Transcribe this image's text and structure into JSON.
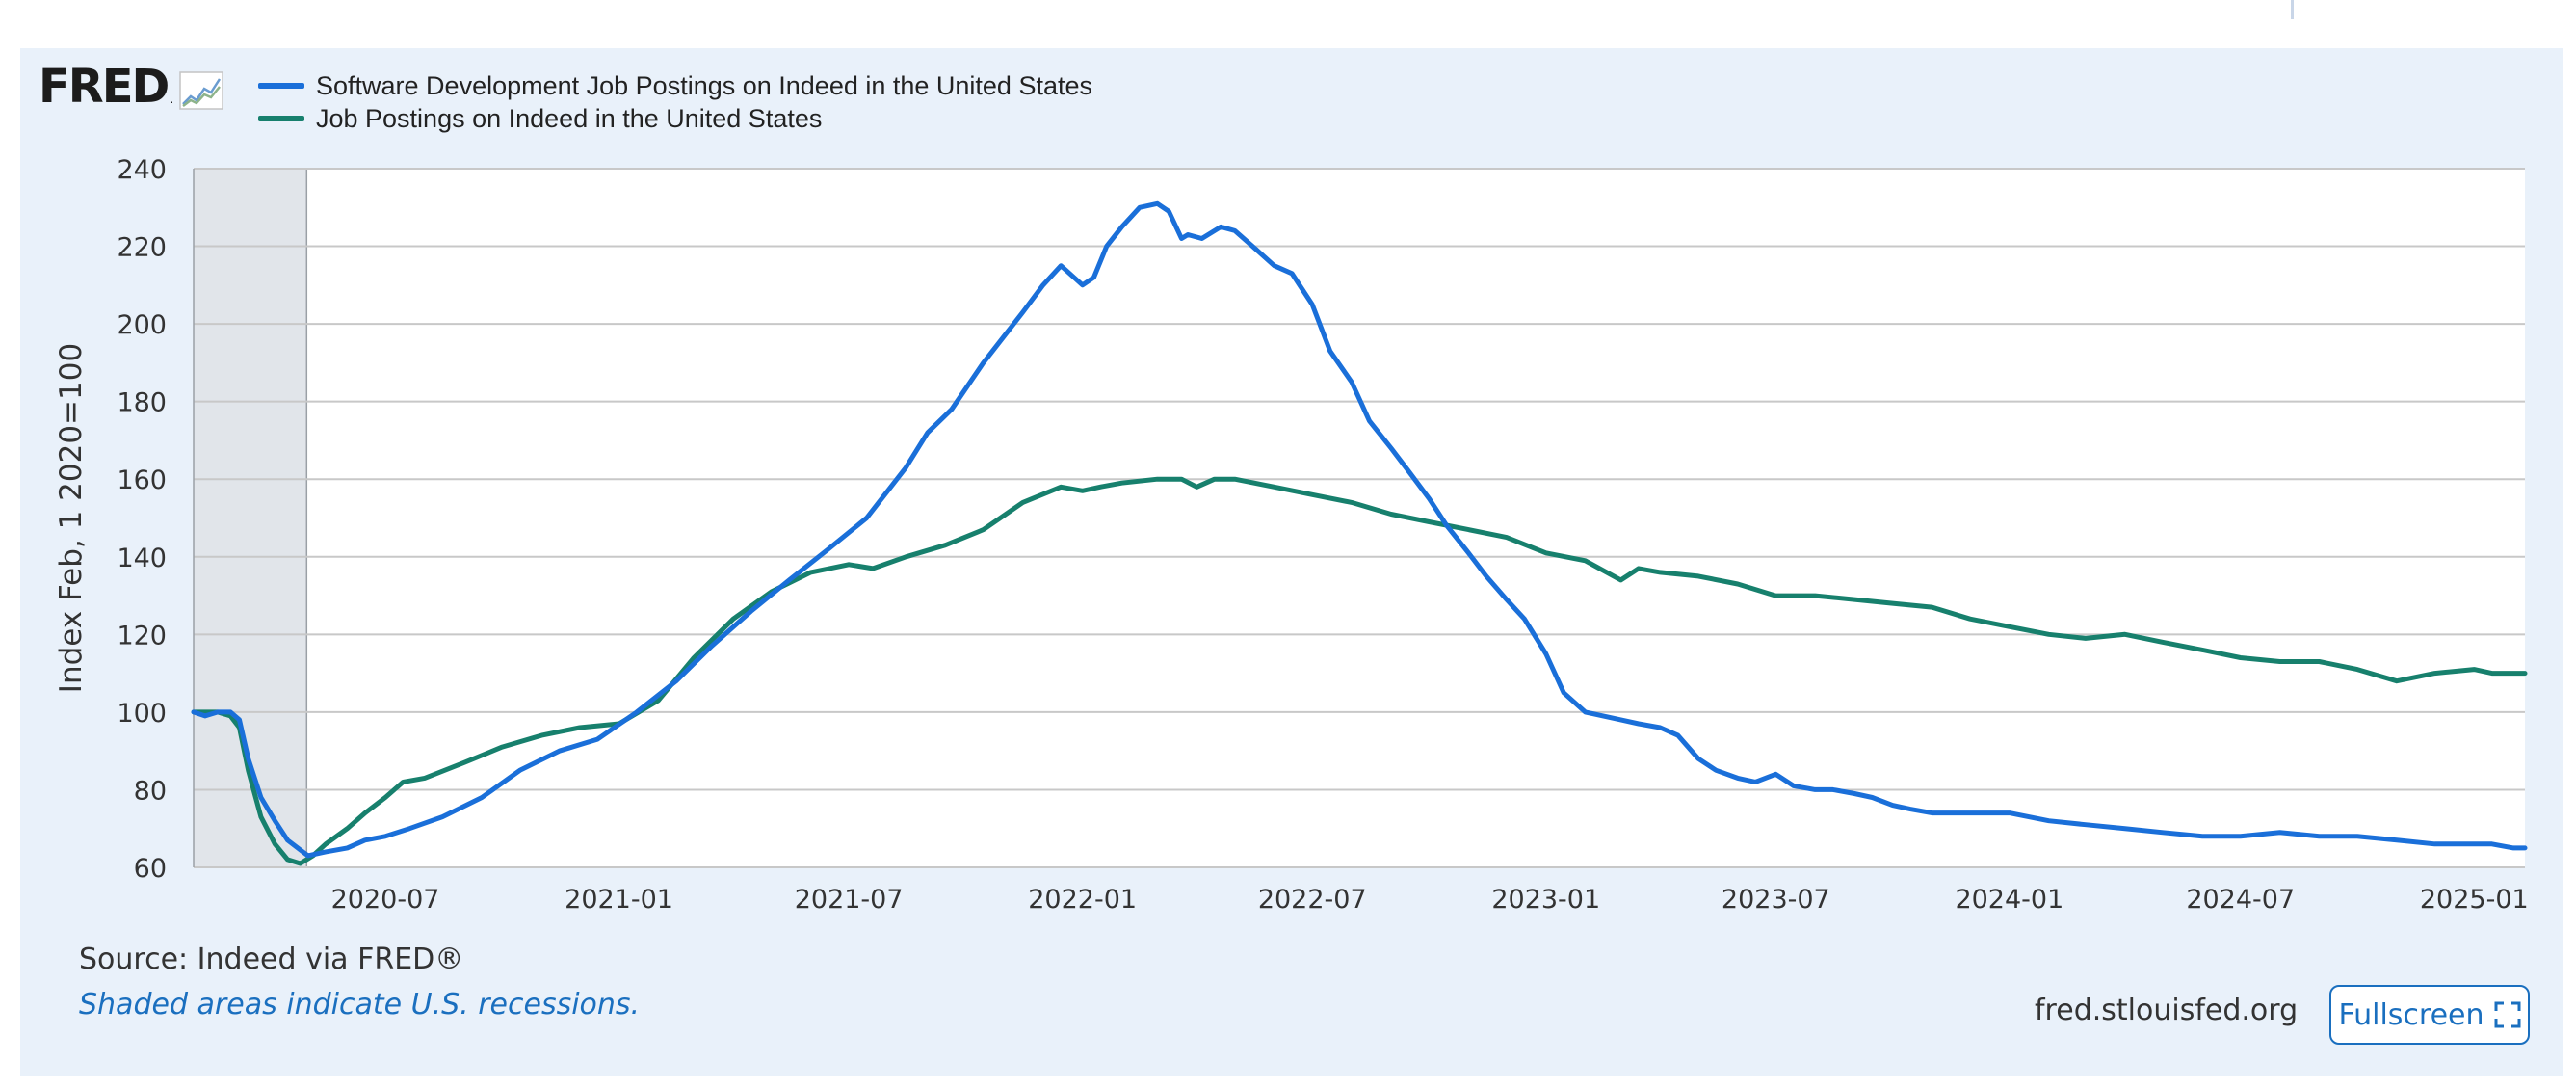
{
  "logo": {
    "text": "FRED",
    "dot": "."
  },
  "source": "Source: Indeed via FRED®",
  "recession_note": "Shaded areas indicate U.S. recessions.",
  "site": "fred.stlouisfed.org",
  "fullscreen_label": "Fullscreen",
  "icons": {
    "logo": "fred-graph-icon",
    "fullscreen": "expand-icon"
  },
  "colors": {
    "software": "#1a6fd9",
    "all_jobs": "#17806d",
    "recession": "#e1e5ea",
    "grid": "#c8c8c8",
    "panel": "#e9f1fa"
  },
  "chart_data": {
    "type": "line",
    "title": "",
    "xlabel": "",
    "ylabel": "Index Feb, 1 2020=100",
    "ylim": [
      60,
      240
    ],
    "xlim": [
      "2020-02-01",
      "2025-02-10"
    ],
    "yticks": [
      60,
      80,
      100,
      120,
      140,
      160,
      180,
      200,
      220,
      240
    ],
    "xticks": [
      "2020-07",
      "2021-01",
      "2021-07",
      "2022-01",
      "2022-07",
      "2023-01",
      "2023-07",
      "2024-01",
      "2024-07",
      "2025-01"
    ],
    "grid": true,
    "legend_position": "top-left",
    "recession_shading": [
      [
        "2020-02-01",
        "2020-04-30"
      ]
    ],
    "series": [
      {
        "name": "Software Development Job Postings on Indeed in the United States",
        "color": "#1a6fd9",
        "x": [
          "2020-02-01",
          "2020-02-10",
          "2020-02-20",
          "2020-03-01",
          "2020-03-08",
          "2020-03-15",
          "2020-03-25",
          "2020-04-05",
          "2020-04-15",
          "2020-05-01",
          "2020-05-15",
          "2020-06-01",
          "2020-06-15",
          "2020-07-01",
          "2020-07-20",
          "2020-08-15",
          "2020-09-15",
          "2020-10-15",
          "2020-11-15",
          "2020-12-15",
          "2021-01-15",
          "2021-02-15",
          "2021-03-15",
          "2021-04-15",
          "2021-05-15",
          "2021-06-15",
          "2021-07-15",
          "2021-08-15",
          "2021-09-01",
          "2021-09-20",
          "2021-10-15",
          "2021-11-15",
          "2021-12-01",
          "2021-12-15",
          "2022-01-01",
          "2022-01-10",
          "2022-01-20",
          "2022-02-01",
          "2022-02-15",
          "2022-03-01",
          "2022-03-10",
          "2022-03-20",
          "2022-03-25",
          "2022-04-05",
          "2022-04-20",
          "2022-05-01",
          "2022-05-15",
          "2022-06-01",
          "2022-06-15",
          "2022-07-01",
          "2022-07-15",
          "2022-08-01",
          "2022-08-15",
          "2022-09-01",
          "2022-09-15",
          "2022-10-01",
          "2022-10-15",
          "2022-11-01",
          "2022-11-15",
          "2022-12-01",
          "2022-12-15",
          "2023-01-01",
          "2023-01-15",
          "2023-02-01",
          "2023-02-15",
          "2023-03-01",
          "2023-03-15",
          "2023-04-01",
          "2023-04-15",
          "2023-05-01",
          "2023-05-15",
          "2023-06-01",
          "2023-06-15",
          "2023-07-01",
          "2023-07-15",
          "2023-08-01",
          "2023-08-15",
          "2023-09-01",
          "2023-09-15",
          "2023-10-01",
          "2023-10-15",
          "2023-11-01",
          "2023-12-01",
          "2024-01-01",
          "2024-02-01",
          "2024-03-01",
          "2024-04-01",
          "2024-05-01",
          "2024-06-01",
          "2024-07-01",
          "2024-08-01",
          "2024-09-01",
          "2024-10-01",
          "2024-11-01",
          "2024-12-01",
          "2025-01-01",
          "2025-01-15",
          "2025-02-01",
          "2025-02-10"
        ],
        "y": [
          100,
          99,
          100,
          100,
          98,
          88,
          78,
          72,
          67,
          63,
          64,
          65,
          67,
          68,
          70,
          73,
          78,
          85,
          90,
          93,
          100,
          108,
          117,
          126,
          134,
          142,
          150,
          163,
          172,
          178,
          190,
          203,
          210,
          215,
          210,
          212,
          220,
          225,
          230,
          231,
          229,
          222,
          223,
          222,
          225,
          224,
          220,
          215,
          213,
          205,
          193,
          185,
          175,
          168,
          162,
          155,
          148,
          141,
          135,
          129,
          124,
          115,
          105,
          100,
          99,
          98,
          97,
          96,
          94,
          88,
          85,
          83,
          82,
          84,
          81,
          80,
          80,
          79,
          78,
          76,
          75,
          74,
          74,
          74,
          72,
          71,
          70,
          69,
          68,
          68,
          69,
          68,
          68,
          67,
          66,
          66,
          66,
          65,
          65
        ]
      },
      {
        "name": "Job Postings on Indeed in the United States",
        "color": "#17806d",
        "x": [
          "2020-02-01",
          "2020-02-20",
          "2020-03-01",
          "2020-03-08",
          "2020-03-15",
          "2020-03-25",
          "2020-04-05",
          "2020-04-15",
          "2020-04-25",
          "2020-05-05",
          "2020-05-15",
          "2020-06-01",
          "2020-06-15",
          "2020-07-01",
          "2020-07-15",
          "2020-08-01",
          "2020-09-01",
          "2020-10-01",
          "2020-11-01",
          "2020-12-01",
          "2021-01-01",
          "2021-02-01",
          "2021-03-01",
          "2021-04-01",
          "2021-05-01",
          "2021-06-01",
          "2021-07-01",
          "2021-07-20",
          "2021-08-15",
          "2021-09-15",
          "2021-10-15",
          "2021-11-15",
          "2021-12-15",
          "2022-01-01",
          "2022-01-15",
          "2022-02-01",
          "2022-03-01",
          "2022-03-20",
          "2022-04-01",
          "2022-04-15",
          "2022-05-01",
          "2022-06-01",
          "2022-07-01",
          "2022-08-01",
          "2022-09-01",
          "2022-10-01",
          "2022-11-01",
          "2022-12-01",
          "2023-01-01",
          "2023-02-01",
          "2023-03-01",
          "2023-03-15",
          "2023-04-01",
          "2023-05-01",
          "2023-06-01",
          "2023-07-01",
          "2023-08-01",
          "2023-09-01",
          "2023-10-01",
          "2023-11-01",
          "2023-12-01",
          "2024-01-01",
          "2024-02-01",
          "2024-03-01",
          "2024-04-01",
          "2024-05-01",
          "2024-06-01",
          "2024-07-01",
          "2024-08-01",
          "2024-09-01",
          "2024-10-01",
          "2024-11-01",
          "2024-12-01",
          "2025-01-01",
          "2025-01-15",
          "2025-02-10"
        ],
        "y": [
          100,
          100,
          99,
          96,
          85,
          73,
          66,
          62,
          61,
          63,
          66,
          70,
          74,
          78,
          82,
          83,
          87,
          91,
          94,
          96,
          97,
          103,
          114,
          124,
          131,
          136,
          138,
          137,
          140,
          143,
          147,
          154,
          158,
          157,
          158,
          159,
          160,
          160,
          158,
          160,
          160,
          158,
          156,
          154,
          151,
          149,
          147,
          145,
          141,
          139,
          134,
          137,
          136,
          135,
          133,
          130,
          130,
          129,
          128,
          127,
          124,
          122,
          120,
          119,
          120,
          118,
          116,
          114,
          113,
          113,
          111,
          108,
          110,
          111,
          110,
          110
        ]
      }
    ]
  }
}
